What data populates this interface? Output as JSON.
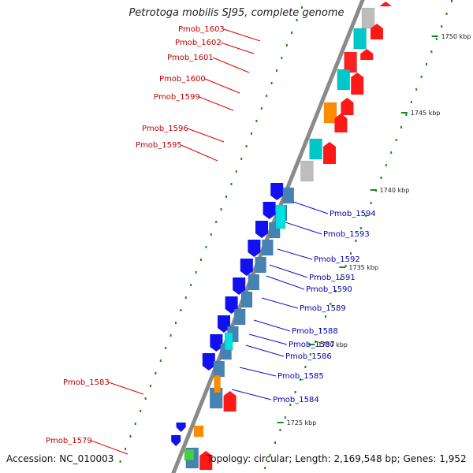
{
  "title": "Petrotoga mobilis SJ95, complete genome",
  "accession_label": "Accession: NC_010003",
  "topology_label": "Topology: circular; Length: 2,169,548 bp; Genes: 1,952",
  "colors": {
    "forward_label": "#c00000",
    "reverse_label": "#0000b0",
    "tick": "#1a8a1a",
    "backbone": "#8a8a8a"
  },
  "kbp_labels": [
    {
      "text": "1750 kbp"
    },
    {
      "text": "1745 kbp"
    },
    {
      "text": "1740 kbp"
    },
    {
      "text": "1735 kbp"
    },
    {
      "text": "1730 kbp"
    },
    {
      "text": "1725 kbp"
    }
  ],
  "forward_genes": [
    {
      "name": "Pmob_1603"
    },
    {
      "name": "Pmob_1602"
    },
    {
      "name": "Pmob_1601"
    },
    {
      "name": "Pmob_1600"
    },
    {
      "name": "Pmob_1599"
    },
    {
      "name": "Pmob_1596"
    },
    {
      "name": "Pmob_1595"
    },
    {
      "name": "Pmob_1583"
    },
    {
      "name": "Pmob_1579"
    }
  ],
  "reverse_genes": [
    {
      "name": "Pmob_1594"
    },
    {
      "name": "Pmob_1593"
    },
    {
      "name": "Pmob_1592"
    },
    {
      "name": "Pmob_1591"
    },
    {
      "name": "Pmob_1590"
    },
    {
      "name": "Pmob_1589"
    },
    {
      "name": "Pmob_1588"
    },
    {
      "name": "Pmob_1587"
    },
    {
      "name": "Pmob_1586"
    },
    {
      "name": "Pmob_1585"
    },
    {
      "name": "Pmob_1584"
    }
  ]
}
